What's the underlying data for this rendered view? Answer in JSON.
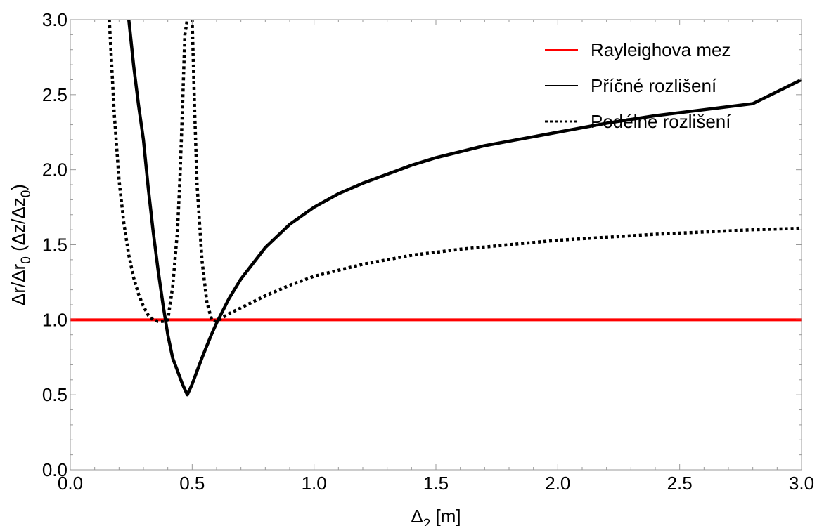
{
  "chart_data": {
    "type": "line",
    "xlabel": "Δ",
    "xlabel_sub": "2",
    "xlabel_unit": " [m]",
    "ylabel_parts": [
      "Δr/Δr",
      "0",
      " (Δz/Δz",
      "0",
      ")"
    ],
    "xlim": [
      0,
      3
    ],
    "ylim": [
      0,
      3
    ],
    "xticks": [
      0.0,
      0.5,
      1.0,
      1.5,
      2.0,
      2.5,
      3.0
    ],
    "xtick_labels": [
      "0.0",
      "0.5",
      "1.0",
      "1.5",
      "2.0",
      "2.5",
      "3.0"
    ],
    "yticks": [
      0.0,
      0.5,
      1.0,
      1.5,
      2.0,
      2.5,
      3.0
    ],
    "ytick_labels": [
      "0.0",
      "0.5",
      "1.0",
      "1.5",
      "2.0",
      "2.5",
      "3.0"
    ],
    "legend_position": "top-right",
    "series": [
      {
        "name": "Rayleighova mez",
        "color": "#ff0000",
        "style": "solid",
        "x": [
          0.0,
          3.0
        ],
        "y": [
          1.0,
          1.0
        ]
      },
      {
        "name": "Příčné rozlišení",
        "color": "#000000",
        "style": "solid",
        "x": [
          0.24,
          0.26,
          0.28,
          0.3,
          0.32,
          0.34,
          0.36,
          0.38,
          0.4,
          0.42,
          0.44,
          0.46,
          0.48,
          0.5,
          0.52,
          0.54,
          0.56,
          0.58,
          0.6,
          0.65,
          0.7,
          0.8,
          0.9,
          1.0,
          1.1,
          1.2,
          1.3,
          1.4,
          1.5,
          1.6,
          1.7,
          1.8,
          1.9,
          2.0,
          2.2,
          2.4,
          2.6,
          2.8,
          3.0
        ],
        "y": [
          3.0,
          2.692,
          2.429,
          2.2,
          1.875,
          1.588,
          1.333,
          1.105,
          0.9,
          0.745,
          0.659,
          0.571,
          0.5,
          0.571,
          0.659,
          0.745,
          0.826,
          0.905,
          0.978,
          1.138,
          1.272,
          1.481,
          1.636,
          1.75,
          1.84,
          1.91,
          1.97,
          2.03,
          2.08,
          2.12,
          2.16,
          2.19,
          2.22,
          2.25,
          2.31,
          2.36,
          2.4,
          2.44,
          2.6
        ]
      },
      {
        "name": "Podélné rozlišení",
        "color": "#000000",
        "style": "dotted",
        "segments": [
          {
            "x": [
              0.16,
              0.18,
              0.2,
              0.22,
              0.24,
              0.26,
              0.28,
              0.3,
              0.32,
              0.34,
              0.36,
              0.38,
              0.4,
              0.42,
              0.44,
              0.45,
              0.46,
              0.47,
              0.48
            ],
            "y": [
              3.0,
              2.38,
              1.93,
              1.64,
              1.43,
              1.28,
              1.17,
              1.09,
              1.03,
              1.0,
              0.99,
              0.99,
              1.0,
              1.22,
              1.6,
              1.95,
              2.4,
              2.9,
              3.0
            ]
          },
          {
            "x": [
              0.5,
              0.51,
              0.52,
              0.54,
              0.56,
              0.58,
              0.6,
              0.62,
              0.65,
              0.7,
              0.8,
              0.9,
              1.0,
              1.2,
              1.4,
              1.6,
              1.8,
              2.0,
              2.2,
              2.4,
              2.6,
              2.8,
              3.0
            ],
            "y": [
              3.0,
              2.4,
              1.9,
              1.4,
              1.12,
              1.0,
              0.99,
              1.01,
              1.04,
              1.08,
              1.16,
              1.23,
              1.29,
              1.37,
              1.43,
              1.47,
              1.5,
              1.53,
              1.55,
              1.57,
              1.585,
              1.6,
              1.61
            ]
          }
        ]
      }
    ]
  }
}
